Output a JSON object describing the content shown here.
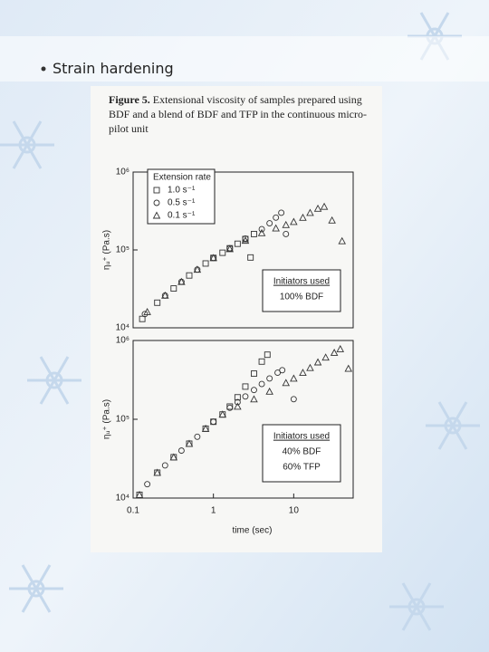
{
  "slide": {
    "bullet": "Strain hardening"
  },
  "figure": {
    "label": "Figure 5.",
    "lines": [
      "Extensional viscosity of samples prepared using",
      "BDF and a blend of BDF and TFP in the continuous micro-",
      "pilot unit"
    ]
  },
  "chart_data": [
    {
      "type": "scatter",
      "log_x": true,
      "log_y": true,
      "legend": "upper left",
      "legend_title": "Extension rate",
      "ylabel": "ηᵤ⁺ (Pa.s)",
      "xlim": [
        0.1,
        55
      ],
      "ylim": [
        10000,
        1000000
      ],
      "yticks": [
        {
          "value": 10000,
          "label": "10⁴"
        },
        {
          "value": 100000,
          "label": "10⁵"
        },
        {
          "value": 1000000,
          "label": "10⁶"
        }
      ],
      "annotation": [
        "Initiators used",
        "100% BDF"
      ],
      "series": [
        {
          "name": "1.0 s⁻¹",
          "marker": "square",
          "color": "#333333",
          "x": [
            0.13,
            0.2,
            0.32,
            0.5,
            0.8,
            1.0,
            1.3,
            1.6,
            2.0,
            2.5,
            3.2,
            2.9
          ],
          "values": [
            13000,
            21000,
            32000,
            47000,
            67000,
            79000,
            92000,
            105000,
            120000,
            138000,
            160000,
            80000
          ]
        },
        {
          "name": "0.5 s⁻¹",
          "marker": "circle",
          "color": "#333333",
          "x": [
            0.14,
            0.25,
            0.4,
            0.63,
            1.0,
            1.6,
            2.5,
            4.0,
            5.0,
            6.0,
            7.0,
            8.0
          ],
          "values": [
            15000,
            26000,
            39000,
            56000,
            79000,
            105000,
            140000,
            185000,
            220000,
            260000,
            300000,
            160000
          ]
        },
        {
          "name": "0.1 s⁻¹",
          "marker": "triangle",
          "color": "#333333",
          "x": [
            0.15,
            0.25,
            0.4,
            0.63,
            1.0,
            1.6,
            2.5,
            4.0,
            6.0,
            8.0,
            10,
            13,
            16,
            20,
            24,
            30,
            40
          ],
          "values": [
            16000,
            26000,
            39000,
            56000,
            79000,
            103000,
            132000,
            165000,
            190000,
            210000,
            230000,
            260000,
            300000,
            340000,
            360000,
            240000,
            130000
          ]
        }
      ]
    },
    {
      "type": "scatter",
      "log_x": true,
      "log_y": true,
      "ylabel": "ηᵤ⁺ (Pa.s)",
      "xlabel": "time (sec)",
      "xlim": [
        0.1,
        55
      ],
      "ylim": [
        10000,
        1000000
      ],
      "xticks": [
        0.1,
        1,
        10
      ],
      "yticks": [
        {
          "value": 10000,
          "label": "10⁴"
        },
        {
          "value": 100000,
          "label": "10⁵"
        },
        {
          "value": 1000000,
          "label": "10⁶"
        }
      ],
      "annotation": [
        "Initiators used",
        "40% BDF",
        "60% TFP"
      ],
      "series": [
        {
          "marker": "square",
          "color": "#333333",
          "x": [
            0.12,
            0.2,
            0.32,
            0.5,
            0.8,
            1.0,
            1.3,
            1.6,
            2.0,
            2.5,
            3.2,
            4.0,
            4.7
          ],
          "values": [
            11000,
            21000,
            33000,
            49000,
            76000,
            93000,
            115000,
            145000,
            190000,
            260000,
            380000,
            540000,
            660000
          ]
        },
        {
          "marker": "circle",
          "color": "#333333",
          "x": [
            0.15,
            0.25,
            0.4,
            0.63,
            1.0,
            1.6,
            2.0,
            2.5,
            3.2,
            4.0,
            5.0,
            6.3,
            7.2,
            10
          ],
          "values": [
            15000,
            26000,
            40000,
            60000,
            93000,
            140000,
            165000,
            195000,
            235000,
            280000,
            330000,
            390000,
            420000,
            180000
          ]
        },
        {
          "marker": "triangle",
          "color": "#333333",
          "x": [
            0.12,
            0.2,
            0.32,
            0.5,
            0.8,
            1.3,
            2.0,
            3.2,
            5.0,
            8.0,
            10,
            13,
            16,
            20,
            25,
            32,
            38,
            48
          ],
          "values": [
            11000,
            21000,
            33000,
            49000,
            76000,
            115000,
            145000,
            180000,
            225000,
            290000,
            330000,
            390000,
            450000,
            530000,
            610000,
            700000,
            780000,
            440000
          ]
        }
      ]
    }
  ]
}
